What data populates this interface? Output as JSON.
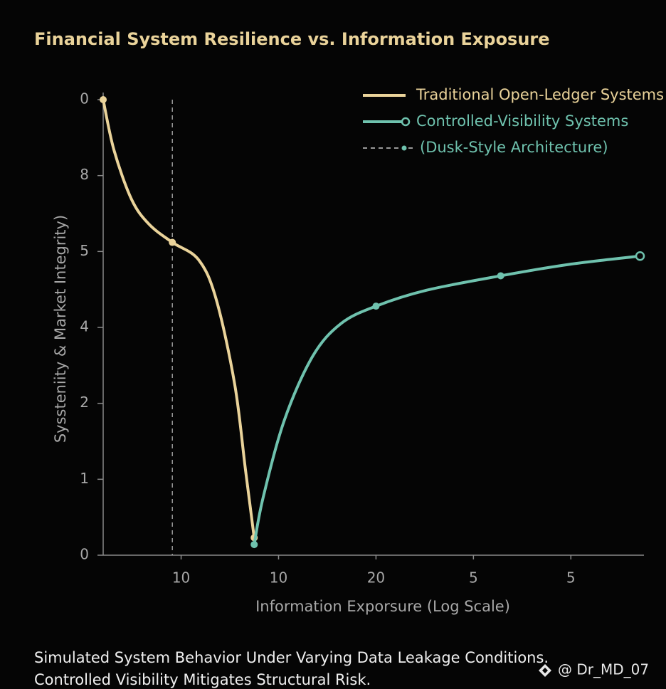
{
  "chart_data": {
    "type": "line",
    "title": "Financial System Resilience vs. Information Exposure",
    "x_label": "Information Exporsure (Log Scale)",
    "y_label": "Syssteniity & Market Integrity)",
    "xlim": [
      0.2,
      5.75
    ],
    "xticks": [
      {
        "value": 1,
        "label": "10"
      },
      {
        "value": 2,
        "label": "10"
      },
      {
        "value": 3,
        "label": "20"
      },
      {
        "value": 4,
        "label": "5"
      },
      {
        "value": 5,
        "label": "5"
      }
    ],
    "ylim": [
      0,
      6
    ],
    "yticks": [
      0,
      1,
      2,
      {
        "value": 3,
        "label": "4"
      },
      {
        "value": 4,
        "label": "5"
      },
      {
        "value": 5,
        "label": "8"
      },
      {
        "value": 6,
        "label": "0"
      }
    ],
    "series": [
      {
        "name": "Traditional Open-Ledger Systems",
        "color": "#ead39a",
        "x": [
          0.2,
          0.31,
          0.49,
          0.67,
          0.91,
          1.18,
          1.36,
          1.55,
          1.66,
          1.75
        ],
        "values": [
          6.0,
          5.34,
          4.69,
          4.36,
          4.12,
          3.89,
          3.37,
          2.25,
          1.13,
          0.23
        ],
        "markers": [
          0,
          4,
          9
        ]
      },
      {
        "name": "Controlled-Visibility Systems",
        "color": "#6fc2ae",
        "x": [
          1.75,
          1.84,
          2.06,
          2.35,
          2.64,
          3.0,
          3.52,
          4.28,
          4.98,
          5.71
        ],
        "values": [
          0.14,
          0.75,
          1.78,
          2.62,
          3.05,
          3.28,
          3.49,
          3.68,
          3.83,
          3.94
        ],
        "markers": [
          0,
          5,
          7
        ],
        "end_marker": "hollow"
      }
    ],
    "vline": {
      "name": "(Dusk-Style Architecture)",
      "x": 0.91,
      "color": "#9a9a9a"
    },
    "caption": [
      "Simulated System Behavior Under Varying Data Leakage Conditions.",
      "Controlled Visibility Mitigates Structural Risk."
    ],
    "watermark": "@ Dr_MD_07"
  }
}
